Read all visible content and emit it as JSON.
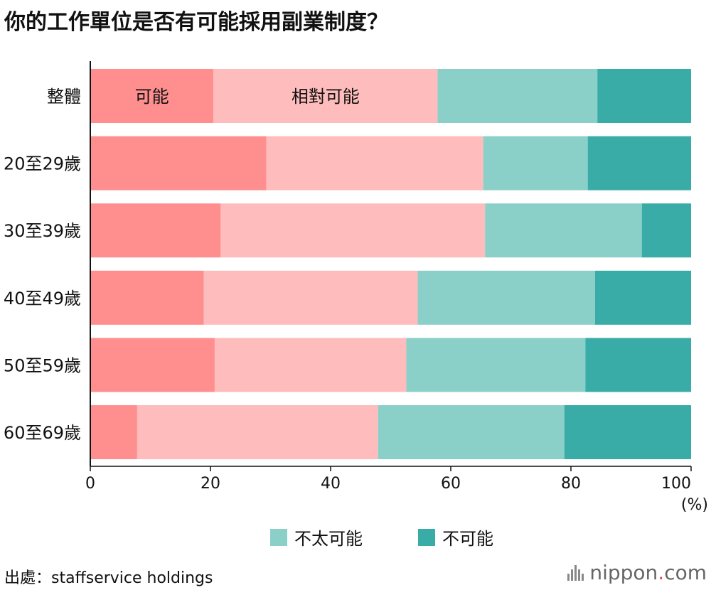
{
  "title": "你的工作單位是否有可能採用副業制度？",
  "source": "出處：staffservice holdings",
  "logo": {
    "prefix": "nippon",
    "dot": ".",
    "suffix": "com"
  },
  "colors": {
    "possible": "#ff8f8f",
    "somewhat_possible": "#ffbcbc",
    "not_very_possible": "#8ad0c9",
    "not_possible": "#3aaca8"
  },
  "chart_data": {
    "type": "bar",
    "orientation": "horizontal",
    "stacked": true,
    "categories": [
      "整體",
      "20至29歲",
      "30至39歲",
      "40至49歲",
      "50至59歲",
      "60至69歲"
    ],
    "series": [
      {
        "name": "可能",
        "values": [
          20.5,
          29.3,
          21.7,
          18.9,
          20.7,
          7.8
        ]
      },
      {
        "name": "相對可能",
        "values": [
          37.3,
          36.1,
          44.0,
          35.6,
          31.9,
          40.1
        ]
      },
      {
        "name": "不太可能",
        "values": [
          26.6,
          17.4,
          26.1,
          29.5,
          29.8,
          31.0
        ]
      },
      {
        "name": "不可能",
        "values": [
          15.6,
          17.2,
          8.2,
          16.0,
          17.6,
          21.1
        ]
      }
    ],
    "xlim": [
      0,
      100
    ],
    "xticks": [
      "0",
      "20",
      "40",
      "60",
      "80",
      "100"
    ],
    "xunit": "(%)",
    "legend": [
      "不太可能",
      "不可能"
    ],
    "legend_position": "bottom",
    "inline_labels": [
      "可能",
      "相對可能"
    ],
    "grid": false
  }
}
